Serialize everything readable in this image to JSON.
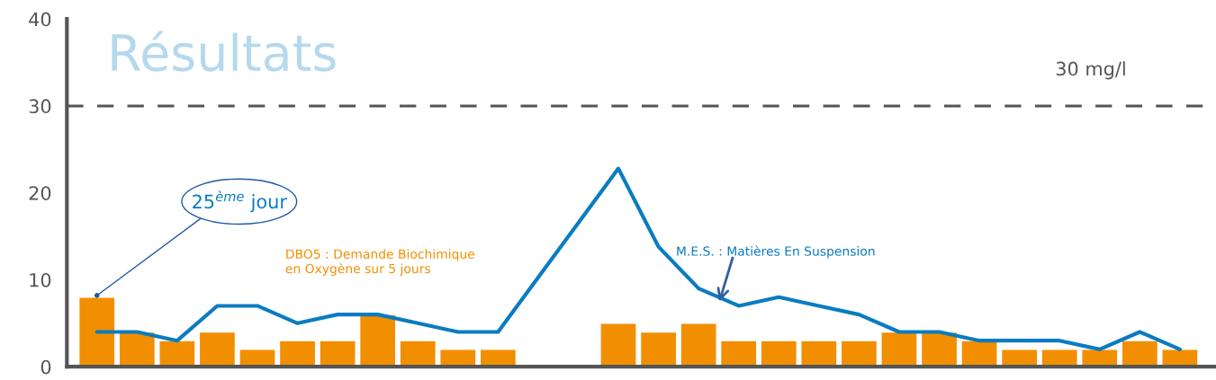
{
  "chart_data": {
    "type": "bar",
    "title": "Résultats",
    "categories": [
      null,
      null,
      null,
      null,
      null,
      null,
      null,
      null,
      null,
      null,
      null,
      null,
      null,
      null,
      null,
      null,
      null,
      null,
      null,
      null,
      null,
      null,
      null,
      null,
      null,
      null,
      null,
      null
    ],
    "series": [
      {
        "name": "DBO5 : Demande Biochimique\nen Oxygène sur 5 jours",
        "color": "#f18f00",
        "values": [
          8,
          4,
          3,
          4,
          2,
          3,
          3,
          6,
          3,
          2,
          2,
          null,
          null,
          5,
          4,
          5,
          3,
          3,
          3,
          3,
          4,
          4,
          3,
          2,
          2,
          2,
          3,
          2
        ]
      },
      {
        "name": "M.E.S. : Matières En Suspension",
        "type": "line",
        "color": "#0a7cc1",
        "values": [
          4,
          4,
          3,
          7,
          7,
          5,
          6,
          6,
          5,
          4,
          4,
          null,
          null,
          22.8,
          13.8,
          9,
          7,
          8,
          7,
          6,
          4,
          4,
          3,
          3,
          3,
          2,
          4,
          2
        ]
      }
    ],
    "ylim": [
      0,
      40
    ],
    "yticks": [
      0,
      10,
      20,
      30,
      40
    ],
    "grid": false,
    "legend": false,
    "ref_lines": [
      {
        "axis": "y",
        "value": 30,
        "label": "30 mg/l",
        "color": "#555555",
        "line_style": "dashed"
      }
    ],
    "annotations": [
      "25$^{ème}$ jour"
    ]
  }
}
